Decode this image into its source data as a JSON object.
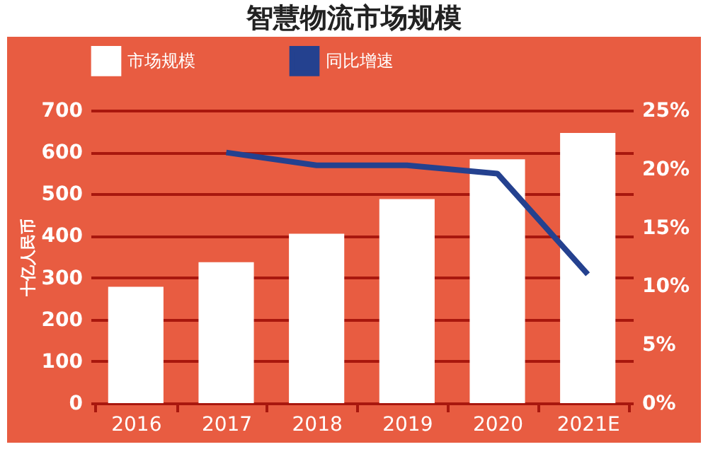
{
  "chart_data": {
    "type": "bar",
    "title": "智慧物流市场规模",
    "ylabel": "十亿人民币",
    "categories": [
      "2016",
      "2017",
      "2018",
      "2019",
      "2020",
      "2021E"
    ],
    "series": [
      {
        "name": "市场规模",
        "color": "#ffffff",
        "values": [
          278,
          337,
          405,
          488,
          583,
          646
        ]
      },
      {
        "name": "同比增速",
        "type": "line",
        "axis": "y2",
        "color": "#24418f",
        "values": [
          null,
          21.4,
          20.3,
          20.3,
          19.6,
          11.0
        ]
      }
    ],
    "ylim": [
      0,
      700
    ],
    "yticks": [
      0,
      100,
      200,
      300,
      400,
      500,
      600,
      700
    ],
    "y2lim": [
      0,
      25
    ],
    "y2ticks": [
      {
        "value": 0,
        "label": "0%"
      },
      {
        "value": 5,
        "label": "5%"
      },
      {
        "value": 10,
        "label": "10%"
      },
      {
        "value": 15,
        "label": "15%"
      },
      {
        "value": 20,
        "label": "20%"
      },
      {
        "value": 25,
        "label": "25%"
      }
    ],
    "grid": "y",
    "legend": "top",
    "marker": "none"
  }
}
